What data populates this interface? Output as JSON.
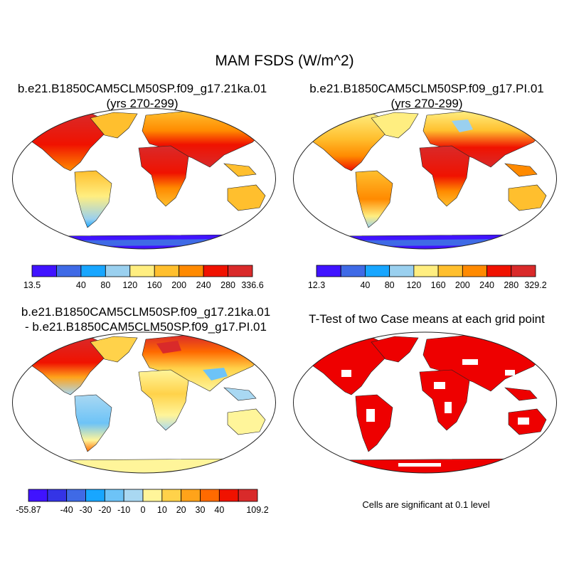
{
  "figure": {
    "title": "MAM FSDS (W/m^2)"
  },
  "panels": [
    {
      "title_line1": "b.e21.B1850CAM5CLM50SP.f09_g17.21ka.01",
      "title_line2": "(yrs 270-299)",
      "colorbar_labels": [
        "13.5",
        "40",
        "80",
        "120",
        "160",
        "200",
        "240",
        "280",
        "336.6"
      ],
      "colorbar_colors": [
        "#4013ff",
        "#3f6ae6",
        "#18a6ff",
        "#9ad0ef",
        "#ffee80",
        "#ffbf2e",
        "#ff8a00",
        "#f01200",
        "#d92a2a"
      ]
    },
    {
      "title_line1": "b.e21.B1850CAM5CLM50SP.f09_g17.PI.01",
      "title_line2": "(yrs 270-299)",
      "colorbar_labels": [
        "12.3",
        "40",
        "80",
        "120",
        "160",
        "200",
        "240",
        "280",
        "329.2"
      ],
      "colorbar_colors": [
        "#4013ff",
        "#3f6ae6",
        "#18a6ff",
        "#9ad0ef",
        "#ffee80",
        "#ffbf2e",
        "#ff8a00",
        "#f01200",
        "#d92a2a"
      ]
    },
    {
      "title_line1": "b.e21.B1850CAM5CLM50SP.f09_g17.21ka.01",
      "title_line2": "- b.e21.B1850CAM5CLM50SP.f09_g17.PI.01",
      "colorbar_labels": [
        "-55.87",
        "-40",
        "-30",
        "-20",
        "-10",
        "0",
        "10",
        "20",
        "30",
        "40",
        "109.2"
      ],
      "colorbar_colors": [
        "#4013ff",
        "#3434e6",
        "#3f6ae6",
        "#18a6ff",
        "#6dc3f7",
        "#a9d8f2",
        "#fff59a",
        "#ffd24a",
        "#ffa31a",
        "#ff6a00",
        "#f01200",
        "#d92a2a"
      ]
    },
    {
      "title_line1": "T-Test of two Case means at each grid point",
      "significance_note": "Cells are significant at 0.1 level",
      "significance_color": "#ee0000"
    }
  ]
}
